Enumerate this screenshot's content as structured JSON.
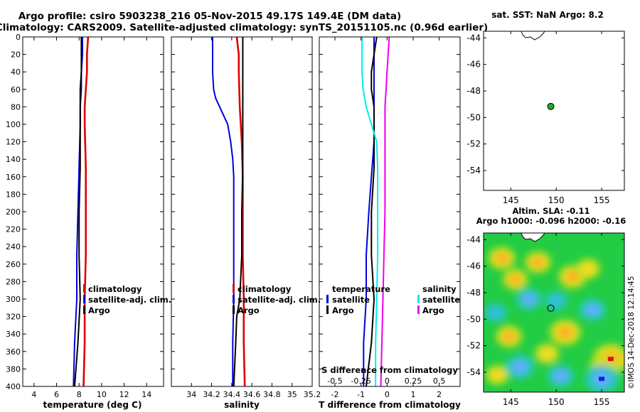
{
  "header": {
    "title_line1": "Argo profile: csiro 5903238_216 05-Nov-2015 49.17S 149.4E (DM data)",
    "title_line2": "Climatology: CARS2009. Satellite-adjusted climatology: synTS_20151105.nc (0.96d earlier)"
  },
  "colors": {
    "climatology": "#e00000",
    "satellite": "#0000dd",
    "argo": "#000000",
    "salinity_satellite": "#00eeee",
    "salinity_argo": "#ee00ee",
    "float_marker": "#22aa22"
  },
  "chart_data": [
    {
      "id": "temperature",
      "type": "line",
      "xlabel": "temperature (deg C)",
      "ylabel": "",
      "xlim": [
        3,
        15.5
      ],
      "ylim": [
        400,
        0
      ],
      "xticks": [
        4,
        6,
        8,
        10,
        12,
        14
      ],
      "yticks": [
        0,
        20,
        40,
        60,
        80,
        100,
        120,
        140,
        160,
        180,
        200,
        220,
        240,
        260,
        280,
        300,
        320,
        340,
        360,
        380,
        400
      ],
      "legend": [
        "climatology",
        "satellite-adj. clim.",
        "Argo"
      ],
      "series": [
        {
          "name": "climatology",
          "depth": [
            0,
            20,
            40,
            60,
            80,
            100,
            150,
            200,
            250,
            300,
            350,
            400
          ],
          "values": [
            8.8,
            8.7,
            8.7,
            8.6,
            8.5,
            8.5,
            8.6,
            8.6,
            8.6,
            8.5,
            8.5,
            8.4
          ]
        },
        {
          "name": "satellite-adj. clim.",
          "depth": [
            0,
            20,
            40,
            60,
            80,
            100,
            150,
            200,
            250,
            300,
            350,
            400
          ],
          "values": [
            8.3,
            8.3,
            8.2,
            8.2,
            8.1,
            8.1,
            8.0,
            7.9,
            7.8,
            7.8,
            7.6,
            7.5
          ]
        },
        {
          "name": "Argo",
          "depth": [
            0,
            10,
            20,
            40,
            60,
            80,
            100,
            150,
            200,
            250,
            300,
            350,
            400
          ],
          "values": [
            8.2,
            8.2,
            8.2,
            8.2,
            8.1,
            8.1,
            8.1,
            8.1,
            8.0,
            8.0,
            8.1,
            7.9,
            7.6
          ]
        }
      ]
    },
    {
      "id": "salinity",
      "type": "line",
      "xlabel": "salinity",
      "ylabel": "",
      "xlim": [
        33.8,
        35.2
      ],
      "ylim": [
        400,
        0
      ],
      "xticks": [
        34,
        34.2,
        34.4,
        34.6,
        34.8,
        35,
        35.2
      ],
      "legend": [
        "climatology",
        "satellite-adj. clim.",
        "Argo"
      ],
      "series": [
        {
          "name": "climatology",
          "depth": [
            0,
            20,
            40,
            80,
            120,
            160,
            200,
            250,
            300,
            350,
            400
          ],
          "values": [
            34.45,
            34.47,
            34.47,
            34.48,
            34.5,
            34.51,
            34.51,
            34.51,
            34.52,
            34.52,
            34.53
          ]
        },
        {
          "name": "satellite-adj. clim.",
          "depth": [
            0,
            20,
            40,
            60,
            70,
            80,
            90,
            100,
            120,
            140,
            160,
            200,
            250,
            300,
            350,
            400
          ],
          "values": [
            34.21,
            34.21,
            34.21,
            34.22,
            34.24,
            34.28,
            34.32,
            34.36,
            34.39,
            34.41,
            34.42,
            34.42,
            34.42,
            34.42,
            34.41,
            34.41
          ]
        },
        {
          "name": "Argo",
          "depth": [
            0,
            20,
            40,
            60,
            80,
            100,
            150,
            200,
            250,
            300,
            320,
            350,
            400
          ],
          "values": [
            34.51,
            34.51,
            34.51,
            34.51,
            34.51,
            34.51,
            34.51,
            34.5,
            34.5,
            34.48,
            34.45,
            34.44,
            34.42
          ]
        }
      ]
    },
    {
      "id": "difference",
      "type": "line",
      "xlabel": "T difference from climatology",
      "xlabel2": "S difference from climatology",
      "xlim": [
        -2.6,
        2.8
      ],
      "ylim": [
        400,
        0
      ],
      "xticks": [
        -2,
        -1,
        0,
        1,
        2
      ],
      "xticks2": [
        -0.5,
        -0.25,
        0,
        0.25,
        0.5
      ],
      "xtick2_labels": [
        "-0.5",
        "-0.25",
        "0",
        "0.25",
        "0.5"
      ],
      "legend_temperature_title": "temperature",
      "legend_salinity_title": "salinity",
      "legend_temperature": [
        "satellite",
        "Argo"
      ],
      "legend_salinity": [
        "satellite",
        "Argo"
      ],
      "series": [
        {
          "name": "temperature satellite",
          "depth": [
            0,
            40,
            80,
            120,
            160,
            200,
            250,
            300,
            350,
            400
          ],
          "values": [
            -0.5,
            -0.5,
            -0.5,
            -0.5,
            -0.6,
            -0.7,
            -0.8,
            -0.8,
            -0.9,
            -0.9
          ]
        },
        {
          "name": "temperature Argo",
          "depth": [
            0,
            20,
            40,
            60,
            80,
            100,
            150,
            200,
            250,
            300,
            350,
            400
          ],
          "values": [
            -0.4,
            -0.5,
            -0.6,
            -0.6,
            -0.5,
            -0.5,
            -0.5,
            -0.6,
            -0.6,
            -0.5,
            -0.6,
            -0.8
          ]
        },
        {
          "name": "salinity satellite",
          "depth": [
            0,
            20,
            40,
            60,
            80,
            100,
            120,
            150,
            200,
            250,
            300,
            350,
            400
          ],
          "values": [
            -0.24,
            -0.24,
            -0.24,
            -0.23,
            -0.2,
            -0.15,
            -0.1,
            -0.09,
            -0.09,
            -0.09,
            -0.1,
            -0.11,
            -0.11
          ]
        },
        {
          "name": "salinity Argo",
          "depth": [
            0,
            20,
            40,
            60,
            80,
            100,
            150,
            200,
            250,
            300,
            350,
            400
          ],
          "values": [
            0.02,
            0.01,
            0.0,
            -0.01,
            -0.02,
            -0.02,
            -0.02,
            -0.02,
            -0.03,
            -0.04,
            -0.05,
            -0.06
          ]
        }
      ]
    },
    {
      "id": "sst_map",
      "type": "scatter",
      "title": "sat. SST: NaN Argo: 8.2",
      "xlim": [
        142,
        157.5
      ],
      "ylim": [
        -55.5,
        -43.5
      ],
      "xticks": [
        145,
        150,
        155
      ],
      "yticks": [
        -44,
        -46,
        -48,
        -50,
        -52,
        -54
      ],
      "float_position": {
        "lon": 149.4,
        "lat": -49.17
      }
    },
    {
      "id": "sla_map",
      "type": "heatmap",
      "title_line1": "Altim. SLA: -0.11",
      "title_line2": "Argo h1000: -0.096 h2000: -0.16",
      "side_label": "©IMOS 14-Dec-2018 12:14:45",
      "xlim": [
        142,
        157.5
      ],
      "ylim": [
        -55.5,
        -43.5
      ],
      "xticks": [
        145,
        150,
        155
      ],
      "yticks": [
        -44,
        -46,
        -48,
        -50,
        -52,
        -54
      ],
      "float_position": {
        "lon": 149.4,
        "lat": -49.17
      },
      "background_color": "#22cc44",
      "anomaly_blobs": [
        {
          "lon": 144.0,
          "lat": -45.4,
          "intensity": 1.4
        },
        {
          "lon": 145.5,
          "lat": -47.0,
          "intensity": 1.2
        },
        {
          "lon": 148.0,
          "lat": -45.7,
          "intensity": 1.3
        },
        {
          "lon": 151.8,
          "lat": -46.8,
          "intensity": 1.5
        },
        {
          "lon": 153.5,
          "lat": -46.2,
          "intensity": 1.1
        },
        {
          "lon": 144.8,
          "lat": -51.3,
          "intensity": 1.3
        },
        {
          "lon": 151.0,
          "lat": -51.0,
          "intensity": 1.8
        },
        {
          "lon": 149.0,
          "lat": -52.6,
          "intensity": 1.1
        },
        {
          "lon": 156.0,
          "lat": -53.0,
          "intensity": 2.3
        },
        {
          "lon": 155.2,
          "lat": -53.7,
          "intensity": 1.5
        },
        {
          "lon": 143.5,
          "lat": -54.2,
          "intensity": 1.0
        },
        {
          "lon": 147.0,
          "lat": -48.5,
          "intensity": -1.2
        },
        {
          "lon": 154.0,
          "lat": -49.3,
          "intensity": -1.3
        },
        {
          "lon": 150.0,
          "lat": -48.6,
          "intensity": -0.9
        },
        {
          "lon": 146.0,
          "lat": -53.6,
          "intensity": -1.5
        },
        {
          "lon": 150.5,
          "lat": -54.3,
          "intensity": -1.3
        },
        {
          "lon": 155.0,
          "lat": -54.5,
          "intensity": -2.0
        },
        {
          "lon": 143.3,
          "lat": -49.5,
          "intensity": -0.9
        }
      ]
    }
  ]
}
